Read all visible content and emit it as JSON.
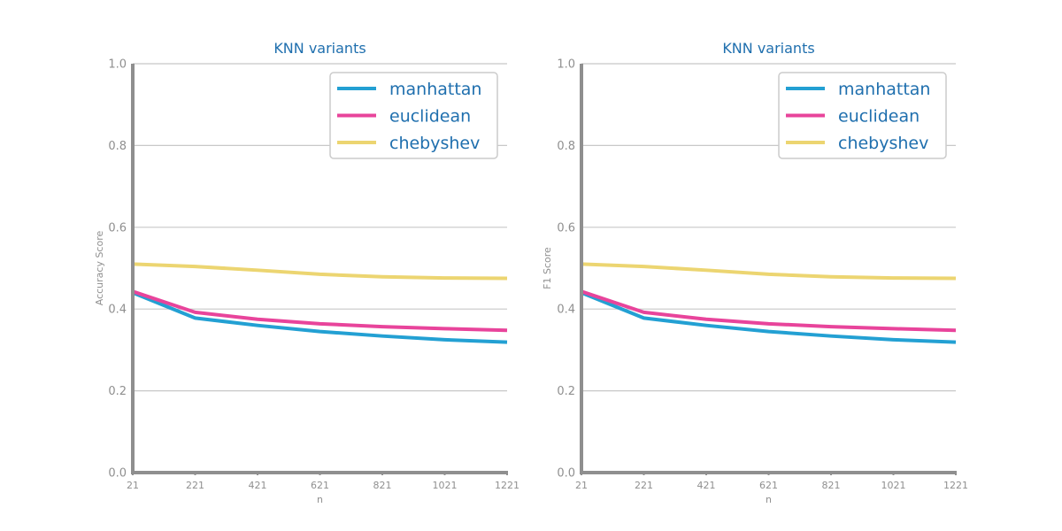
{
  "chart_data": [
    {
      "type": "line",
      "title": "KNN variants",
      "xlabel": "n",
      "ylabel": "Accuracy Score",
      "x": [
        21,
        221,
        421,
        621,
        821,
        1021,
        1221
      ],
      "xticks": [
        "21",
        "221",
        "421",
        "621",
        "821",
        "1021",
        "1221"
      ],
      "yticks": [
        "0.0",
        "0.2",
        "0.4",
        "0.6",
        "0.8",
        "1.0"
      ],
      "xlim": [
        21,
        1221
      ],
      "ylim": [
        0,
        1
      ],
      "grid": "horizontal",
      "legend": "top-right",
      "series": [
        {
          "name": "manhattan",
          "color": "#23a0d3",
          "values": [
            0.44,
            0.378,
            0.36,
            0.345,
            0.334,
            0.325,
            0.319
          ]
        },
        {
          "name": "euclidean",
          "color": "#e8449b",
          "values": [
            0.443,
            0.392,
            0.375,
            0.364,
            0.357,
            0.352,
            0.348
          ]
        },
        {
          "name": "chebyshev",
          "color": "#ecd571",
          "values": [
            0.51,
            0.504,
            0.495,
            0.485,
            0.479,
            0.476,
            0.475
          ]
        }
      ]
    },
    {
      "type": "line",
      "title": "KNN variants",
      "xlabel": "n",
      "ylabel": "F1 Score",
      "x": [
        21,
        221,
        421,
        621,
        821,
        1021,
        1221
      ],
      "xticks": [
        "21",
        "221",
        "421",
        "621",
        "821",
        "1021",
        "1221"
      ],
      "yticks": [
        "0.0",
        "0.2",
        "0.4",
        "0.6",
        "0.8",
        "1.0"
      ],
      "xlim": [
        21,
        1221
      ],
      "ylim": [
        0,
        1
      ],
      "grid": "horizontal",
      "legend": "top-right",
      "series": [
        {
          "name": "manhattan",
          "color": "#23a0d3",
          "values": [
            0.44,
            0.378,
            0.36,
            0.345,
            0.334,
            0.325,
            0.319
          ]
        },
        {
          "name": "euclidean",
          "color": "#e8449b",
          "values": [
            0.443,
            0.392,
            0.375,
            0.364,
            0.357,
            0.352,
            0.348
          ]
        },
        {
          "name": "chebyshev",
          "color": "#ecd571",
          "values": [
            0.51,
            0.504,
            0.495,
            0.485,
            0.479,
            0.476,
            0.475
          ]
        }
      ]
    }
  ]
}
